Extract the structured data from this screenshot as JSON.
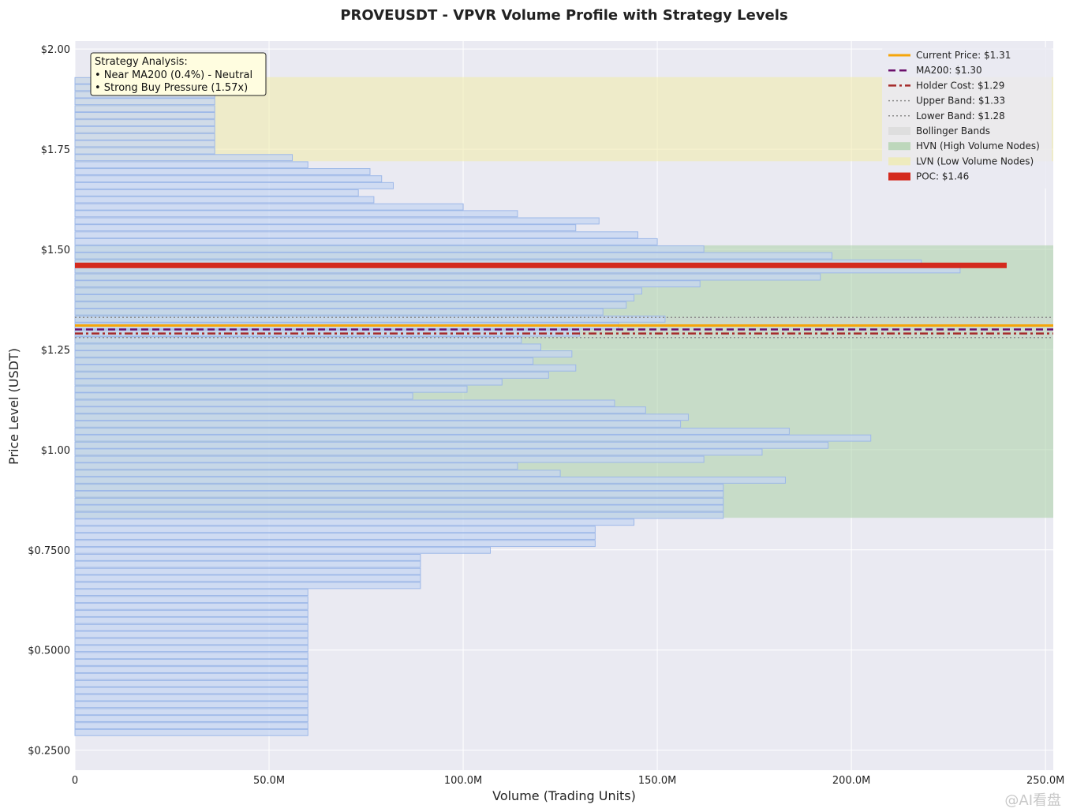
{
  "chart_data": {
    "type": "bar",
    "orientation": "horizontal",
    "title": "PROVEUSDT - VPVR Volume Profile with Strategy Levels",
    "xlabel": "Volume (Trading Units)",
    "ylabel": "Price Level (USDT)",
    "xlim": [
      0,
      252
    ],
    "ylim": [
      0.2,
      2.02
    ],
    "x_unit": "M",
    "x_ticks": [
      {
        "value": 0,
        "label": "0"
      },
      {
        "value": 50,
        "label": "50.0M"
      },
      {
        "value": 100,
        "label": "100.0M"
      },
      {
        "value": 150,
        "label": "150.0M"
      },
      {
        "value": 200,
        "label": "200.0M"
      },
      {
        "value": 250,
        "label": "250.0M"
      }
    ],
    "y_ticks": [
      {
        "value": 2.0,
        "label": "$2.00"
      },
      {
        "value": 1.75,
        "label": "$1.75"
      },
      {
        "value": 1.5,
        "label": "$1.50"
      },
      {
        "value": 1.25,
        "label": "$1.25"
      },
      {
        "value": 1.0,
        "label": "$1.00"
      },
      {
        "value": 0.75,
        "label": "$0.7500"
      },
      {
        "value": 0.5,
        "label": "$0.5000"
      },
      {
        "value": 0.25,
        "label": "$0.2500"
      }
    ],
    "grid": true,
    "legend_position": "top-right",
    "bin_size": 0.0175,
    "bins": [
      {
        "price": 0.294,
        "volume": 60
      },
      {
        "price": 0.311,
        "volume": 60
      },
      {
        "price": 0.329,
        "volume": 60
      },
      {
        "price": 0.346,
        "volume": 60
      },
      {
        "price": 0.364,
        "volume": 60
      },
      {
        "price": 0.381,
        "volume": 60
      },
      {
        "price": 0.399,
        "volume": 60
      },
      {
        "price": 0.416,
        "volume": 60
      },
      {
        "price": 0.434,
        "volume": 60
      },
      {
        "price": 0.451,
        "volume": 60
      },
      {
        "price": 0.469,
        "volume": 60
      },
      {
        "price": 0.486,
        "volume": 60
      },
      {
        "price": 0.504,
        "volume": 60
      },
      {
        "price": 0.521,
        "volume": 60
      },
      {
        "price": 0.539,
        "volume": 60
      },
      {
        "price": 0.556,
        "volume": 60
      },
      {
        "price": 0.574,
        "volume": 60
      },
      {
        "price": 0.591,
        "volume": 60
      },
      {
        "price": 0.609,
        "volume": 60
      },
      {
        "price": 0.626,
        "volume": 60
      },
      {
        "price": 0.644,
        "volume": 60
      },
      {
        "price": 0.661,
        "volume": 89
      },
      {
        "price": 0.679,
        "volume": 89
      },
      {
        "price": 0.696,
        "volume": 89
      },
      {
        "price": 0.714,
        "volume": 89
      },
      {
        "price": 0.731,
        "volume": 89
      },
      {
        "price": 0.749,
        "volume": 107
      },
      {
        "price": 0.766,
        "volume": 134
      },
      {
        "price": 0.784,
        "volume": 134
      },
      {
        "price": 0.801,
        "volume": 134
      },
      {
        "price": 0.819,
        "volume": 144
      },
      {
        "price": 0.836,
        "volume": 167
      },
      {
        "price": 0.854,
        "volume": 167
      },
      {
        "price": 0.871,
        "volume": 167
      },
      {
        "price": 0.889,
        "volume": 167
      },
      {
        "price": 0.906,
        "volume": 167
      },
      {
        "price": 0.924,
        "volume": 183
      },
      {
        "price": 0.941,
        "volume": 125
      },
      {
        "price": 0.959,
        "volume": 114
      },
      {
        "price": 0.976,
        "volume": 162
      },
      {
        "price": 0.994,
        "volume": 177
      },
      {
        "price": 1.011,
        "volume": 194
      },
      {
        "price": 1.029,
        "volume": 205
      },
      {
        "price": 1.046,
        "volume": 184
      },
      {
        "price": 1.064,
        "volume": 156
      },
      {
        "price": 1.081,
        "volume": 158
      },
      {
        "price": 1.099,
        "volume": 147
      },
      {
        "price": 1.116,
        "volume": 139
      },
      {
        "price": 1.134,
        "volume": 87
      },
      {
        "price": 1.151,
        "volume": 101
      },
      {
        "price": 1.169,
        "volume": 110
      },
      {
        "price": 1.186,
        "volume": 122
      },
      {
        "price": 1.204,
        "volume": 129
      },
      {
        "price": 1.221,
        "volume": 118
      },
      {
        "price": 1.239,
        "volume": 128
      },
      {
        "price": 1.256,
        "volume": 120
      },
      {
        "price": 1.274,
        "volume": 115
      },
      {
        "price": 1.291,
        "volume": 130
      },
      {
        "price": 1.309,
        "volume": 140
      },
      {
        "price": 1.326,
        "volume": 152
      },
      {
        "price": 1.344,
        "volume": 136
      },
      {
        "price": 1.361,
        "volume": 142
      },
      {
        "price": 1.379,
        "volume": 144
      },
      {
        "price": 1.396,
        "volume": 146
      },
      {
        "price": 1.414,
        "volume": 161
      },
      {
        "price": 1.431,
        "volume": 192
      },
      {
        "price": 1.449,
        "volume": 228
      },
      {
        "price": 1.466,
        "volume": 218
      },
      {
        "price": 1.484,
        "volume": 195
      },
      {
        "price": 1.501,
        "volume": 162
      },
      {
        "price": 1.519,
        "volume": 150
      },
      {
        "price": 1.536,
        "volume": 145
      },
      {
        "price": 1.554,
        "volume": 129
      },
      {
        "price": 1.571,
        "volume": 135
      },
      {
        "price": 1.589,
        "volume": 114
      },
      {
        "price": 1.606,
        "volume": 100
      },
      {
        "price": 1.624,
        "volume": 77
      },
      {
        "price": 1.641,
        "volume": 73
      },
      {
        "price": 1.659,
        "volume": 82
      },
      {
        "price": 1.676,
        "volume": 79
      },
      {
        "price": 1.694,
        "volume": 76
      },
      {
        "price": 1.711,
        "volume": 60
      },
      {
        "price": 1.729,
        "volume": 56
      },
      {
        "price": 1.746,
        "volume": 36
      },
      {
        "price": 1.764,
        "volume": 36
      },
      {
        "price": 1.781,
        "volume": 36
      },
      {
        "price": 1.799,
        "volume": 36
      },
      {
        "price": 1.816,
        "volume": 36
      },
      {
        "price": 1.834,
        "volume": 36
      },
      {
        "price": 1.851,
        "volume": 36
      },
      {
        "price": 1.869,
        "volume": 36
      },
      {
        "price": 1.886,
        "volume": 36
      },
      {
        "price": 1.904,
        "volume": 36
      },
      {
        "price": 1.921,
        "volume": 36
      }
    ],
    "zones": [
      {
        "kind": "hvn",
        "low": 0.83,
        "high": 1.51,
        "color": "#a9cfa6"
      },
      {
        "kind": "lvn",
        "low": 1.72,
        "high": 1.93,
        "color": "#f0eba8"
      },
      {
        "kind": "bollinger",
        "low": 1.28,
        "high": 1.33,
        "color": "#d8d8d8"
      }
    ],
    "levels": [
      {
        "kind": "current",
        "value": 1.31,
        "color": "#f5a50a",
        "style": "solid"
      },
      {
        "kind": "ma200",
        "value": 1.3,
        "color": "#6b0f6b",
        "style": "dashed"
      },
      {
        "kind": "holder",
        "value": 1.29,
        "color": "#a52a2a",
        "style": "dashdot"
      },
      {
        "kind": "upper",
        "value": 1.33,
        "color": "#8c8c8c",
        "style": "dotted"
      },
      {
        "kind": "lower",
        "value": 1.28,
        "color": "#8c8c8c",
        "style": "dotted"
      }
    ],
    "poc": {
      "price": 1.46,
      "volume": 240,
      "color": "#d42a1e"
    },
    "legend": [
      {
        "label": "Current Price: $1.31",
        "swatch": "line-solid",
        "color": "#f5a50a"
      },
      {
        "label": "MA200: $1.30",
        "swatch": "line-dashed",
        "color": "#6b0f6b"
      },
      {
        "label": "Holder Cost: $1.29",
        "swatch": "line-dashdot",
        "color": "#a52a2a"
      },
      {
        "label": "Upper Band: $1.33",
        "swatch": "line-dotted",
        "color": "#8c8c8c"
      },
      {
        "label": "Lower Band: $1.28",
        "swatch": "line-dotted",
        "color": "#8c8c8c"
      },
      {
        "label": "Bollinger Bands",
        "swatch": "patch",
        "color": "#d8d8d8"
      },
      {
        "label": "HVN (High Volume Nodes)",
        "swatch": "patch",
        "color": "#a9cfa6"
      },
      {
        "label": "LVN (Low Volume Nodes)",
        "swatch": "patch",
        "color": "#f0eba8"
      },
      {
        "label": "POC: $1.46",
        "swatch": "patch-solid",
        "color": "#d42a1e"
      }
    ],
    "annotation": {
      "lines": [
        "Strategy Analysis:",
        "• Near MA200 (0.4%) - Neutral",
        "• Strong Buy Pressure (1.57x)"
      ]
    },
    "colors": {
      "bar_fill": "#c5d6f2",
      "bar_edge": "#9db8e8",
      "plot_bg": "#eaeaf2",
      "grid": "#ffffff"
    }
  },
  "watermark": "@AI看盘"
}
